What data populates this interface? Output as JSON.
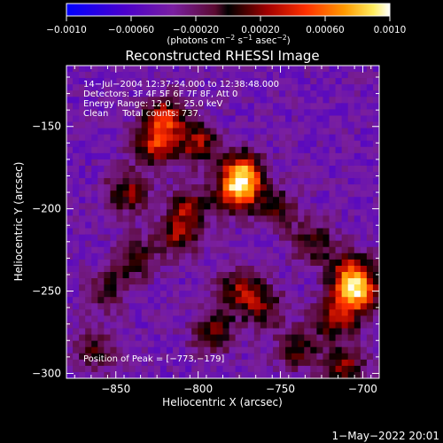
{
  "colorbar": {
    "ticks": [
      "−0.0010",
      "−0.00060",
      "−0.00020",
      "0.00020",
      "0.00060",
      "0.0010"
    ],
    "units_text": "(photons cm",
    "units_sup1": "−2",
    "units_mid": " s",
    "units_sup2": "−1",
    "units_mid2": " asec",
    "units_sup3": "−2",
    "units_end": ")"
  },
  "annotations": {
    "line1": "14−Jul−2004 12:37:24.000 to 12:38:48.000",
    "line2": "Detectors: 3F 4F 5F 6F 7F 8F, Att 0",
    "line3": "Energy Range: 12.0 − 25.0 keV",
    "line4": "Clean     Total counts: 737.",
    "peak": "Position of Peak = [−773,−179]"
  },
  "timestamp": "1−May−2022 20:01",
  "chart_data": {
    "type": "heatmap",
    "title": "Reconstructed RHESSI Image",
    "xlabel": "Heliocentric X (arcsec)",
    "ylabel": "Heliocentric Y (arcsec)",
    "xlim": [
      -880,
      -690
    ],
    "ylim": [
      -303,
      -113
    ],
    "x_ticks": [
      -850,
      -800,
      -750,
      -700
    ],
    "y_ticks": [
      -150,
      -200,
      -250,
      -300
    ],
    "x_tick_labels": [
      "−850",
      "−800",
      "−750",
      "−700"
    ],
    "y_tick_labels": [
      "−150",
      "−200",
      "−250",
      "−300"
    ],
    "colorbar_range": [
      -0.001,
      0.001
    ],
    "colormap": "red-temperature",
    "sources": [
      {
        "x": -773,
        "y": -179,
        "intensity": 0.001
      },
      {
        "x": -776,
        "y": -190,
        "intensity": 0.00085
      },
      {
        "x": -820,
        "y": -145,
        "intensity": 0.0008
      },
      {
        "x": -826,
        "y": -162,
        "intensity": 0.0007
      },
      {
        "x": -800,
        "y": -160,
        "intensity": 0.00065
      },
      {
        "x": -843,
        "y": -190,
        "intensity": 0.0006
      },
      {
        "x": -806,
        "y": -200,
        "intensity": 0.00058
      },
      {
        "x": -812,
        "y": -217,
        "intensity": 0.00055
      },
      {
        "x": -838,
        "y": -230,
        "intensity": 0.0005
      },
      {
        "x": -791,
        "y": -275,
        "intensity": 0.00055
      },
      {
        "x": -775,
        "y": -250,
        "intensity": 0.0006
      },
      {
        "x": -760,
        "y": -260,
        "intensity": 0.0005
      },
      {
        "x": -740,
        "y": -285,
        "intensity": 0.0005
      },
      {
        "x": -717,
        "y": -266,
        "intensity": 0.0007
      },
      {
        "x": -703,
        "y": -252,
        "intensity": 0.0009
      },
      {
        "x": -707,
        "y": -240,
        "intensity": 0.00085
      },
      {
        "x": -711,
        "y": -296,
        "intensity": 0.0006
      },
      {
        "x": -730,
        "y": -220,
        "intensity": 0.0005
      },
      {
        "x": -752,
        "y": -200,
        "intensity": 0.00045
      },
      {
        "x": -863,
        "y": -285,
        "intensity": 0.00045
      },
      {
        "x": -855,
        "y": -250,
        "intensity": 0.0004
      }
    ]
  }
}
